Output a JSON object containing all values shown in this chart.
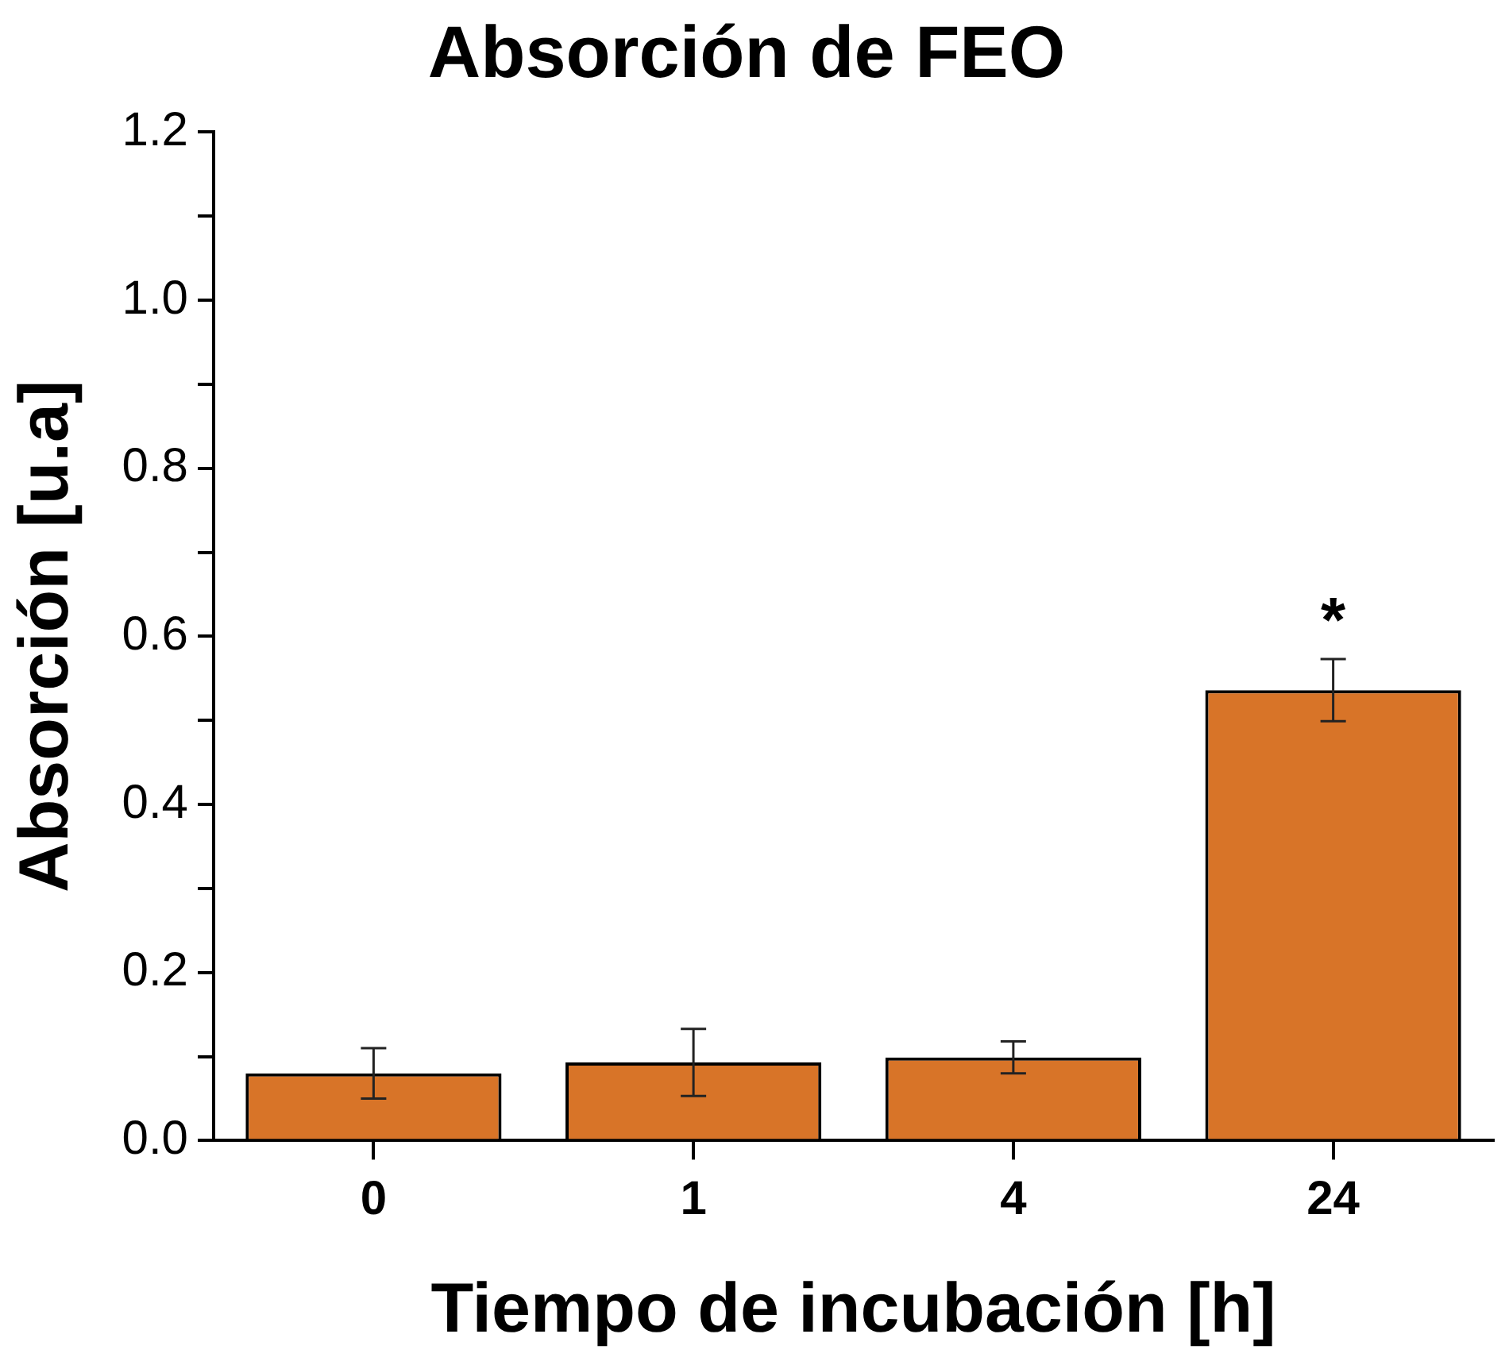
{
  "chart_data": {
    "type": "bar",
    "title": "Absorción de FEO",
    "xlabel": "Tiempo de incubación [h]",
    "ylabel": "Absorción [u.a]",
    "categories": [
      "0",
      "1",
      "4",
      "24"
    ],
    "values": [
      0.08,
      0.093,
      0.099,
      0.536
    ],
    "errors": [
      0.03,
      0.04,
      0.019,
      0.037
    ],
    "color": "#d87428",
    "ylim": [
      0,
      1.2
    ],
    "yticks": [
      {
        "value": 0,
        "label": "0.0"
      },
      {
        "value": 0.1,
        "label": null
      },
      {
        "value": 0.2,
        "label": "0.2"
      },
      {
        "value": 0.3,
        "label": null
      },
      {
        "value": 0.4,
        "label": "0.4"
      },
      {
        "value": 0.5,
        "label": null
      },
      {
        "value": 0.6,
        "label": "0.6"
      },
      {
        "value": 0.7,
        "label": null
      },
      {
        "value": 0.8,
        "label": "0.8"
      },
      {
        "value": 0.9,
        "label": null
      },
      {
        "value": 1.0,
        "label": "1.0"
      },
      {
        "value": 1.1,
        "label": null
      },
      {
        "value": 1.2,
        "label": "1.2"
      }
    ],
    "annotations": [
      "*"
    ],
    "grid": false,
    "legend": false
  }
}
